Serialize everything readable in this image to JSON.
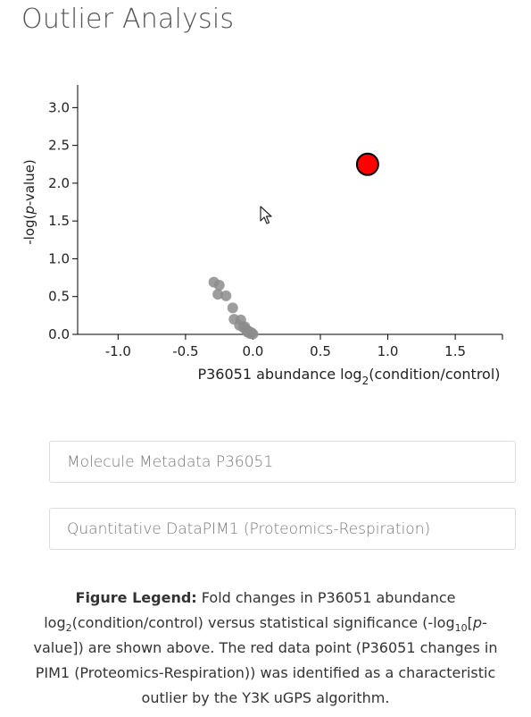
{
  "page": {
    "title": "Outlier Analysis"
  },
  "chart_data": {
    "type": "scatter",
    "title": "",
    "xlabel_main": "P36051 abundance log",
    "xlabel_sub": "2",
    "xlabel_tail": "(condition/control)",
    "ylabel_pre": "-log(",
    "ylabel_italic": "p",
    "ylabel_post": "-value)",
    "xlim": [
      -1.3,
      1.85
    ],
    "ylim": [
      0,
      3.3
    ],
    "xticks": [
      -1.0,
      -0.5,
      0.0,
      0.5,
      1.0,
      1.5
    ],
    "xtick_labels": [
      "-1.0",
      "-0.5",
      "0.0",
      "0.5",
      "1.0",
      "1.5"
    ],
    "yticks": [
      0.0,
      0.5,
      1.0,
      1.5,
      2.0,
      2.5,
      3.0
    ],
    "ytick_labels": [
      "0.0",
      "0.5",
      "1.0",
      "1.5",
      "2.0",
      "2.5",
      "3.0"
    ],
    "grid": false,
    "series": [
      {
        "color": "#8c8c8c",
        "points": [
          [
            -0.29,
            0.69
          ],
          [
            -0.25,
            0.65
          ],
          [
            -0.26,
            0.53
          ],
          [
            -0.2,
            0.51
          ],
          [
            -0.15,
            0.35
          ],
          [
            -0.14,
            0.2
          ],
          [
            -0.09,
            0.19
          ],
          [
            -0.1,
            0.12
          ],
          [
            -0.07,
            0.09
          ],
          [
            -0.05,
            0.06
          ],
          [
            -0.03,
            0.04
          ],
          [
            -0.01,
            0.02
          ],
          [
            0.0,
            0.005
          ],
          [
            -0.06,
            0.1
          ],
          [
            -0.04,
            0.03
          ],
          [
            -0.02,
            0.01
          ]
        ]
      },
      {
        "color": "#ff0000",
        "points": [
          [
            0.85,
            2.25
          ]
        ]
      }
    ]
  },
  "panels": [
    {
      "label": "Molecule Metadata P36051"
    },
    {
      "label": "Quantitative DataPIM1 (Proteomics-Respiration)"
    }
  ],
  "legend": {
    "bold": "Figure Legend:",
    "part1": " Fold changes in P36051 abundance log",
    "sub1": "2",
    "part2": "(condition/control) versus statistical significance (-log",
    "sub2": "10",
    "part3": "[",
    "italic": "p",
    "part4": "-value]) are shown above. The red data point (P36051 changes in PIM1 (Proteomics-Respiration)) was identified as a characteristic outlier by the Y3K uGPS algorithm."
  }
}
